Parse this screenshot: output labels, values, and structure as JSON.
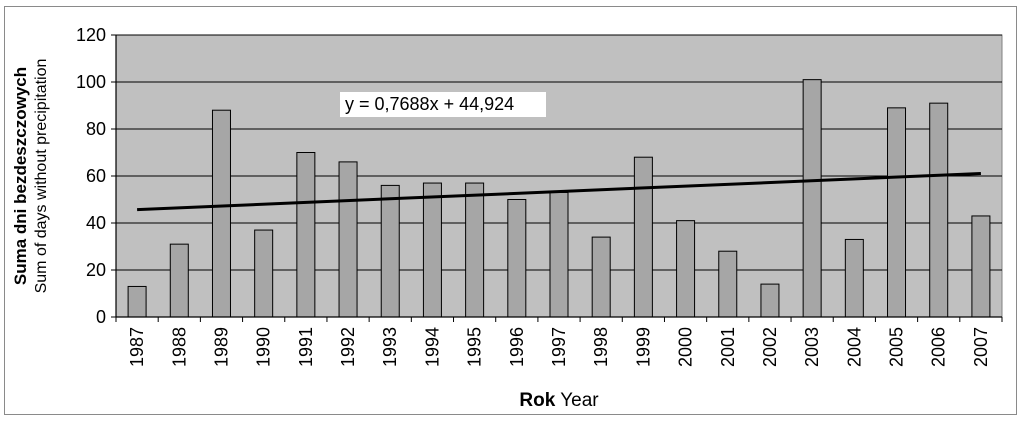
{
  "chart_data": {
    "type": "bar",
    "categories": [
      "1987",
      "1988",
      "1989",
      "1990",
      "1991",
      "1992",
      "1993",
      "1994",
      "1995",
      "1996",
      "1997",
      "1998",
      "1999",
      "2000",
      "2001",
      "2002",
      "2003",
      "2004",
      "2005",
      "2006",
      "2007"
    ],
    "values": [
      13,
      31,
      88,
      37,
      70,
      66,
      56,
      57,
      57,
      50,
      53,
      34,
      68,
      41,
      28,
      14,
      101,
      33,
      89,
      91,
      43
    ],
    "ylim": [
      0,
      120
    ],
    "yticks": [
      0,
      20,
      40,
      60,
      80,
      100,
      120
    ],
    "grid": true,
    "ylabel_bold": "Suma dni bezdeszczowych",
    "ylabel": "Sum of days without precipitation",
    "xlabel_bold": "Rok",
    "xlabel": "Year",
    "trendline": {
      "equation": "y = 0,7688x + 44,924",
      "slope": 0.7688,
      "intercept": 44.924
    },
    "colors": {
      "plot_background": "#c0c0c0",
      "bar_fill": "#a6a6a6",
      "bar_stroke": "#000000",
      "trend_line": "#000000",
      "gridline": "#000000"
    }
  }
}
